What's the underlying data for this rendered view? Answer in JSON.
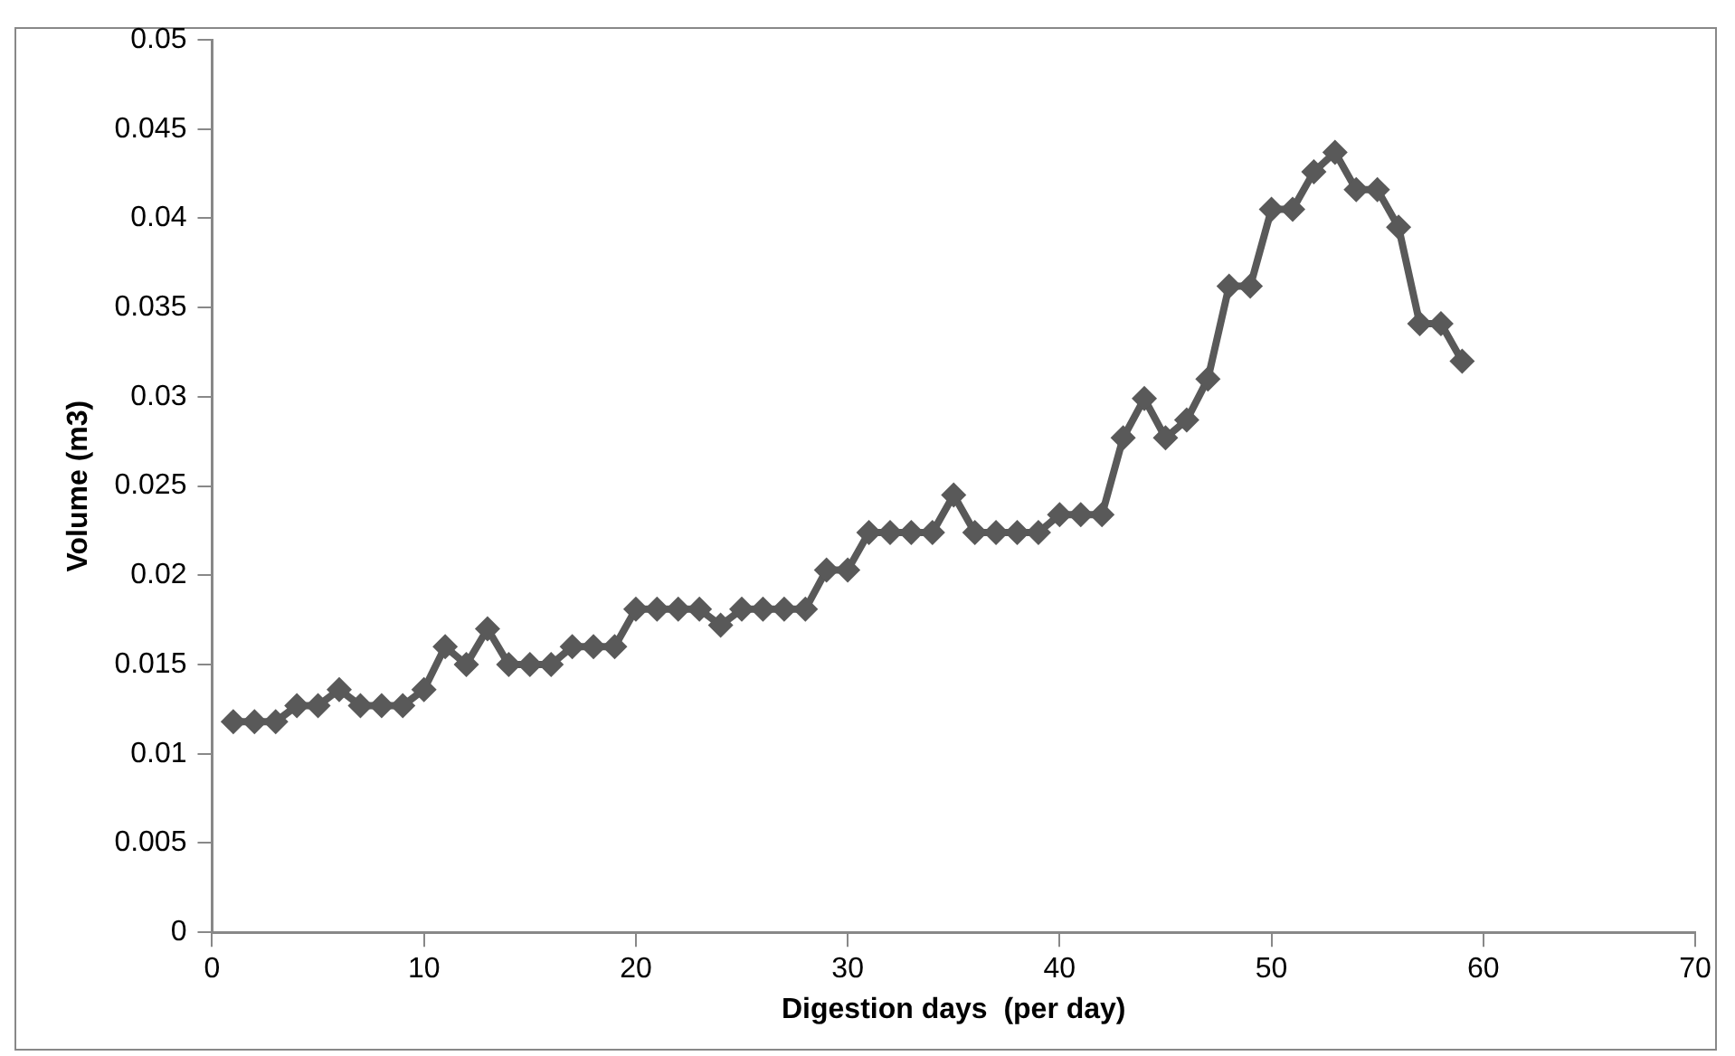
{
  "chart_data": {
    "type": "line",
    "xlabel": "Digestion days  (per day)",
    "ylabel": "Volume (m3)",
    "x": [
      1,
      2,
      3,
      4,
      5,
      6,
      7,
      8,
      9,
      10,
      11,
      12,
      13,
      14,
      15,
      16,
      17,
      18,
      19,
      20,
      21,
      22,
      23,
      24,
      25,
      26,
      27,
      28,
      29,
      30,
      31,
      32,
      33,
      34,
      35,
      36,
      37,
      38,
      39,
      40,
      41,
      42,
      43,
      44,
      45,
      46,
      47,
      48,
      49,
      50,
      51,
      52,
      53,
      54,
      55,
      56,
      57,
      58,
      59
    ],
    "series": [
      {
        "color": "#595959",
        "values": [
          0.0118,
          0.0118,
          0.0118,
          0.0127,
          0.0127,
          0.0136,
          0.0127,
          0.0127,
          0.0127,
          0.0136,
          0.016,
          0.015,
          0.017,
          0.015,
          0.015,
          0.015,
          0.016,
          0.016,
          0.016,
          0.0181,
          0.0181,
          0.0181,
          0.0181,
          0.0172,
          0.0181,
          0.0181,
          0.0181,
          0.0181,
          0.0203,
          0.0203,
          0.0224,
          0.0224,
          0.0224,
          0.0224,
          0.0245,
          0.0224,
          0.0224,
          0.0224,
          0.0224,
          0.0234,
          0.0234,
          0.0234,
          0.0277,
          0.0299,
          0.0277,
          0.0287,
          0.031,
          0.0362,
          0.0362,
          0.0405,
          0.0405,
          0.0426,
          0.0437,
          0.0416,
          0.0416,
          0.0395,
          0.0341,
          0.0341,
          0.032
        ]
      }
    ],
    "xlim": [
      0,
      70
    ],
    "xticks": [
      0,
      10,
      20,
      30,
      40,
      50,
      60,
      70
    ],
    "ylim": [
      0,
      0.05
    ],
    "yticks": [
      0,
      0.005,
      0.01,
      0.015,
      0.02,
      0.025,
      0.03,
      0.035,
      0.04,
      0.045,
      0.05
    ],
    "grid": false,
    "legend": false,
    "marker": "diamond",
    "line_style": "solid"
  }
}
